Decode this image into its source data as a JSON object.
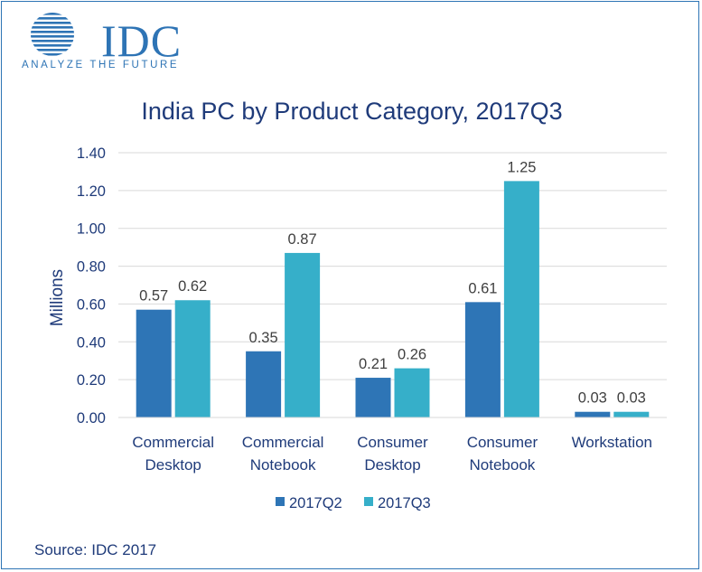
{
  "logo": {
    "name": "IDC",
    "tagline": "ANALYZE THE FUTURE"
  },
  "source": "Source: IDC 2017",
  "colors": {
    "series_q2": "#2e75b6",
    "series_q3": "#36afc9",
    "text": "#1f3b7a",
    "grid": "#d9d9d9"
  },
  "chart_data": {
    "type": "bar",
    "title": "India PC by Product Category, 2017Q3",
    "ylabel": "Millions",
    "xlabel": "",
    "ylim": [
      0,
      1.4
    ],
    "yticks": [
      "0.00",
      "0.20",
      "0.40",
      "0.60",
      "0.80",
      "1.00",
      "1.20",
      "1.40"
    ],
    "categories": [
      [
        "Commercial",
        "Desktop"
      ],
      [
        "Commercial",
        "Notebook"
      ],
      [
        "Consumer",
        "Desktop"
      ],
      [
        "Consumer",
        "Notebook"
      ],
      [
        "Workstation"
      ]
    ],
    "series": [
      {
        "name": "2017Q2",
        "values": [
          0.57,
          0.35,
          0.21,
          0.61,
          0.03
        ],
        "labels": [
          "0.57",
          "0.35",
          "0.21",
          "0.61",
          "0.03"
        ]
      },
      {
        "name": "2017Q3",
        "values": [
          0.62,
          0.87,
          0.26,
          1.25,
          0.03
        ],
        "labels": [
          "0.62",
          "0.87",
          "0.26",
          "1.25",
          "0.03"
        ]
      }
    ],
    "grid": true,
    "legend": "bottom-center"
  }
}
